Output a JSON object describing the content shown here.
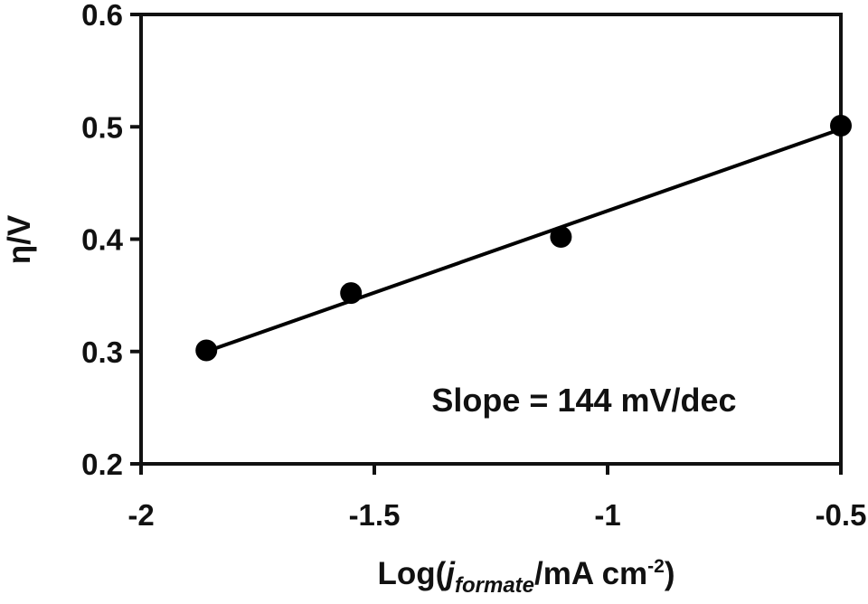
{
  "chart_data": {
    "type": "scatter",
    "x": [
      -1.86,
      -1.55,
      -1.1,
      -0.5
    ],
    "y": [
      0.301,
      0.352,
      0.402,
      0.501
    ],
    "fit_line": {
      "x": [
        -1.86,
        -0.5
      ],
      "y": [
        0.3,
        0.498
      ]
    },
    "xlim": [
      -2,
      -0.5
    ],
    "ylim": [
      0.2,
      0.6
    ],
    "xticks": [
      -2,
      -1.5,
      -1,
      -0.5
    ],
    "xtick_labels": [
      "-2",
      "-1.5",
      "-1",
      "-0.5"
    ],
    "yticks": [
      0.2,
      0.3,
      0.4,
      0.5,
      0.6
    ],
    "ytick_labels": [
      "0.2",
      "0.3",
      "0.4",
      "0.5",
      "0.6"
    ],
    "xlabel": {
      "prefix": "Log(",
      "italic": "j",
      "subscript": "formate",
      "middle": "/mA cm",
      "superscript": "-2",
      "suffix": ")"
    },
    "ylabel": "η/V",
    "annotation": "Slope = 144 mV/dec",
    "grid": false,
    "legend": "none",
    "colors": {
      "marker": "#000000",
      "line": "#000000",
      "axis": "#111111"
    }
  }
}
